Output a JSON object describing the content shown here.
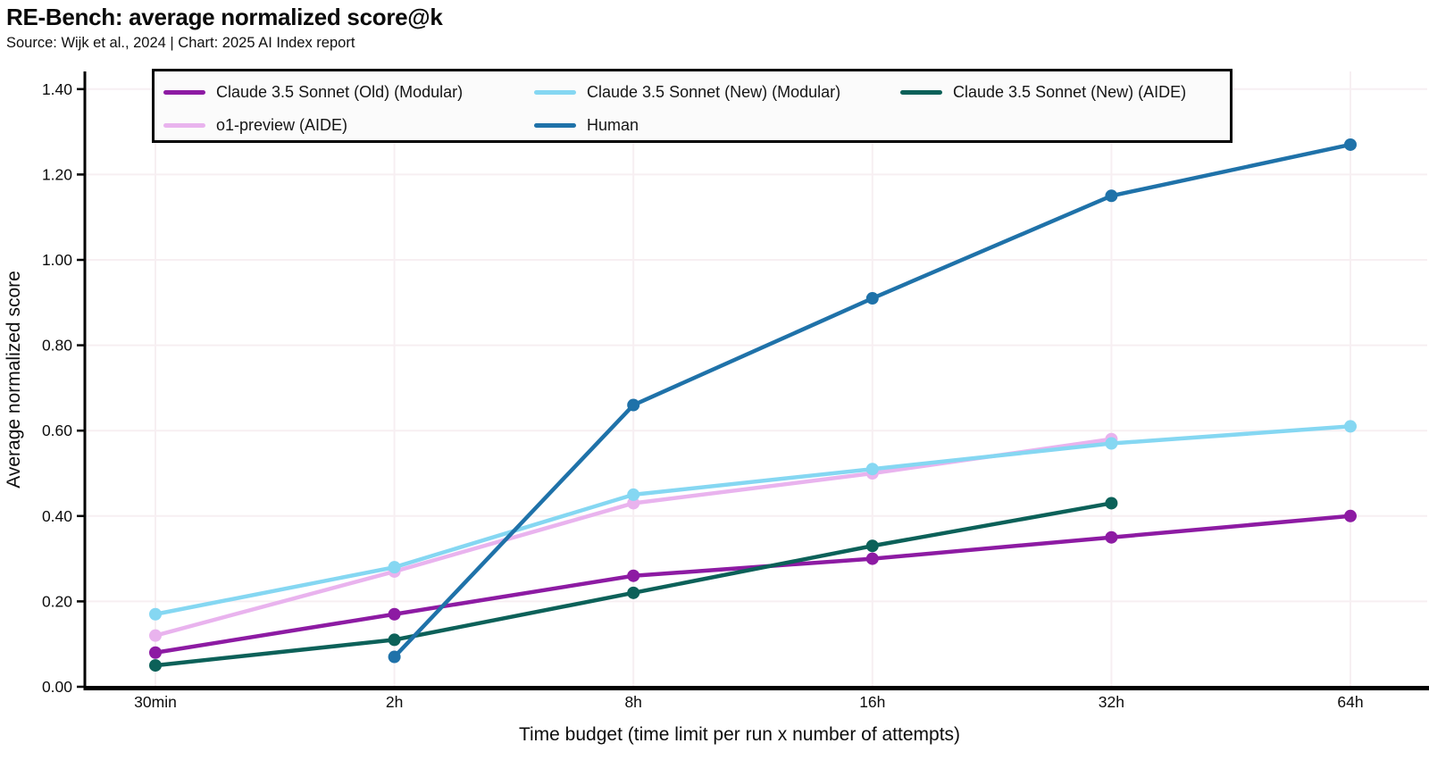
{
  "header": {
    "title": "RE-Bench: average normalized score@k",
    "subtitle": "Source: Wijk et al., 2024 | Chart: 2025 AI Index report"
  },
  "legend": {
    "items": [
      {
        "label": "Claude 3.5 Sonnet (Old) (Modular)",
        "color": "#8d1ba3"
      },
      {
        "label": "Claude 3.5 Sonnet (New) (Modular)",
        "color": "#85d7f2"
      },
      {
        "label": "Claude 3.5 Sonnet (New) (AIDE)",
        "color": "#0c6159"
      },
      {
        "label": "o1-preview (AIDE)",
        "color": "#e9b3ee"
      },
      {
        "label": "Human",
        "color": "#1f72a9"
      }
    ]
  },
  "chart_data": {
    "type": "line",
    "title": "RE-Bench: average normalized score@k",
    "subtitle": "Source: Wijk et al., 2024 | Chart: 2025 AI Index report",
    "xlabel": "Time budget (time limit per run x number of attempts)",
    "ylabel": "Average normalized score",
    "categories": [
      "30min",
      "2h",
      "8h",
      "16h",
      "32h",
      "64h"
    ],
    "ylim": [
      0.0,
      1.4
    ],
    "yticks": [
      {
        "label": "0.00",
        "value": 0.0
      },
      {
        "label": "0.20",
        "value": 0.2
      },
      {
        "label": "0.40",
        "value": 0.4
      },
      {
        "label": "0.60",
        "value": 0.6
      },
      {
        "label": "0.80",
        "value": 0.8
      },
      {
        "label": "1.00",
        "value": 1.0
      },
      {
        "label": "1.20",
        "value": 1.2
      },
      {
        "label": "1.40",
        "value": 1.4
      }
    ],
    "grid": true,
    "legend_position": "top",
    "series": [
      {
        "name": "Claude 3.5 Sonnet (Old) (Modular)",
        "color": "#8d1ba3",
        "points": [
          {
            "x": "30min",
            "y": 0.08
          },
          {
            "x": "2h",
            "y": 0.17
          },
          {
            "x": "8h",
            "y": 0.26
          },
          {
            "x": "16h",
            "y": 0.3
          },
          {
            "x": "32h",
            "y": 0.35
          },
          {
            "x": "64h",
            "y": 0.4
          }
        ]
      },
      {
        "name": "Claude 3.5 Sonnet (New) (Modular)",
        "color": "#85d7f2",
        "points": [
          {
            "x": "30min",
            "y": 0.17
          },
          {
            "x": "2h",
            "y": 0.28
          },
          {
            "x": "8h",
            "y": 0.45
          },
          {
            "x": "16h",
            "y": 0.51
          },
          {
            "x": "32h",
            "y": 0.57
          },
          {
            "x": "64h",
            "y": 0.61
          }
        ]
      },
      {
        "name": "Claude 3.5 Sonnet (New) (AIDE)",
        "color": "#0c6159",
        "points": [
          {
            "x": "30min",
            "y": 0.05
          },
          {
            "x": "2h",
            "y": 0.11
          },
          {
            "x": "8h",
            "y": 0.22
          },
          {
            "x": "16h",
            "y": 0.33
          },
          {
            "x": "32h",
            "y": 0.43
          }
        ]
      },
      {
        "name": "o1-preview (AIDE)",
        "color": "#e9b3ee",
        "points": [
          {
            "x": "30min",
            "y": 0.12
          },
          {
            "x": "2h",
            "y": 0.27
          },
          {
            "x": "8h",
            "y": 0.43
          },
          {
            "x": "16h",
            "y": 0.5
          },
          {
            "x": "32h",
            "y": 0.58
          }
        ]
      },
      {
        "name": "Human",
        "color": "#1f72a9",
        "points": [
          {
            "x": "2h",
            "y": 0.07
          },
          {
            "x": "8h",
            "y": 0.66
          },
          {
            "x": "16h",
            "y": 0.91
          },
          {
            "x": "32h",
            "y": 1.15
          },
          {
            "x": "64h",
            "y": 1.27
          }
        ]
      }
    ]
  }
}
